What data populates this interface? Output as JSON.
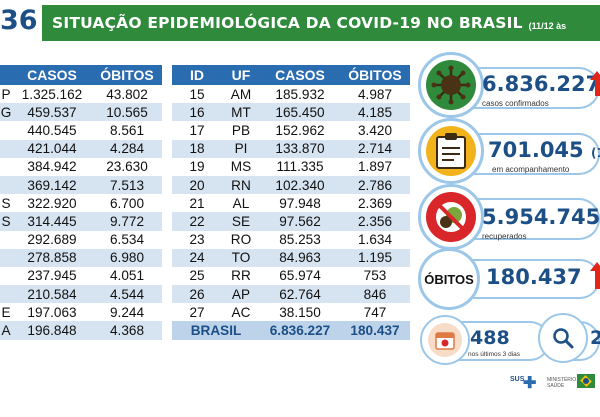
{
  "header": {
    "number": "36",
    "title": "SITUAÇÃO EPIDEMIOLÓGICA DA COVID-19 NO BRASIL",
    "date": "(11/12 às"
  },
  "left_table": {
    "headers": [
      "",
      "CASOS",
      "ÓBITOS"
    ],
    "rows": [
      {
        "id": "P",
        "casos": "1.325.162",
        "obitos": "43.802"
      },
      {
        "id": "G",
        "casos": "459.537",
        "obitos": "10.565"
      },
      {
        "id": "",
        "casos": "440.545",
        "obitos": "8.561"
      },
      {
        "id": "",
        "casos": "421.044",
        "obitos": "4.284"
      },
      {
        "id": "",
        "casos": "384.942",
        "obitos": "23.630"
      },
      {
        "id": "",
        "casos": "369.142",
        "obitos": "7.513"
      },
      {
        "id": "S",
        "casos": "322.920",
        "obitos": "6.700"
      },
      {
        "id": "S",
        "casos": "314.445",
        "obitos": "9.772"
      },
      {
        "id": "",
        "casos": "292.689",
        "obitos": "6.534"
      },
      {
        "id": "",
        "casos": "278.858",
        "obitos": "6.980"
      },
      {
        "id": "",
        "casos": "237.945",
        "obitos": "4.051"
      },
      {
        "id": "",
        "casos": "210.584",
        "obitos": "4.544"
      },
      {
        "id": "E",
        "casos": "197.063",
        "obitos": "9.244"
      },
      {
        "id": "A",
        "casos": "196.848",
        "obitos": "4.368"
      }
    ]
  },
  "right_table": {
    "headers": [
      "ID",
      "UF",
      "CASOS",
      "ÓBITOS"
    ],
    "rows": [
      {
        "id": "15",
        "uf": "AM",
        "casos": "185.932",
        "obitos": "4.987"
      },
      {
        "id": "16",
        "uf": "MT",
        "casos": "165.450",
        "obitos": "4.185"
      },
      {
        "id": "17",
        "uf": "PB",
        "casos": "152.962",
        "obitos": "3.420"
      },
      {
        "id": "18",
        "uf": "PI",
        "casos": "133.870",
        "obitos": "2.714"
      },
      {
        "id": "19",
        "uf": "MS",
        "casos": "111.335",
        "obitos": "1.897"
      },
      {
        "id": "20",
        "uf": "RN",
        "casos": "102.340",
        "obitos": "2.786"
      },
      {
        "id": "21",
        "uf": "AL",
        "casos": "97.948",
        "obitos": "2.369"
      },
      {
        "id": "22",
        "uf": "SE",
        "casos": "97.562",
        "obitos": "2.356"
      },
      {
        "id": "23",
        "uf": "RO",
        "casos": "85.253",
        "obitos": "1.634"
      },
      {
        "id": "24",
        "uf": "TO",
        "casos": "84.963",
        "obitos": "1.195"
      },
      {
        "id": "25",
        "uf": "RR",
        "casos": "65.974",
        "obitos": "753"
      },
      {
        "id": "26",
        "uf": "AP",
        "casos": "62.764",
        "obitos": "846"
      },
      {
        "id": "27",
        "uf": "AC",
        "casos": "38.150",
        "obitos": "747"
      }
    ],
    "total": {
      "label": "BRASIL",
      "casos": "6.836.227",
      "obitos": "180.437"
    }
  },
  "stats": {
    "confirmed": {
      "value": "6.836.227",
      "label": "casos confirmados"
    },
    "monitoring": {
      "value": "701.045",
      "suffix": "(1",
      "label": "em acompanhamento"
    },
    "recovered": {
      "value": "5.954.745",
      "label": "recuperados"
    },
    "deaths": {
      "label": "ÓBITOS",
      "value": "180.437"
    },
    "recent": {
      "value": "488",
      "label": "nos últimos 3 dias"
    },
    "investigating": {
      "value": "2"
    }
  },
  "footer": {
    "sus": "SUS",
    "ministry": "MINISTÉRIO DA SAÚDE"
  },
  "colors": {
    "header_green": "#2f8a3b",
    "table_blue": "#2a6cb0",
    "row_alt": "#d6e4f2",
    "text_blue": "#1d4f87",
    "accent_red": "#e0251b"
  }
}
